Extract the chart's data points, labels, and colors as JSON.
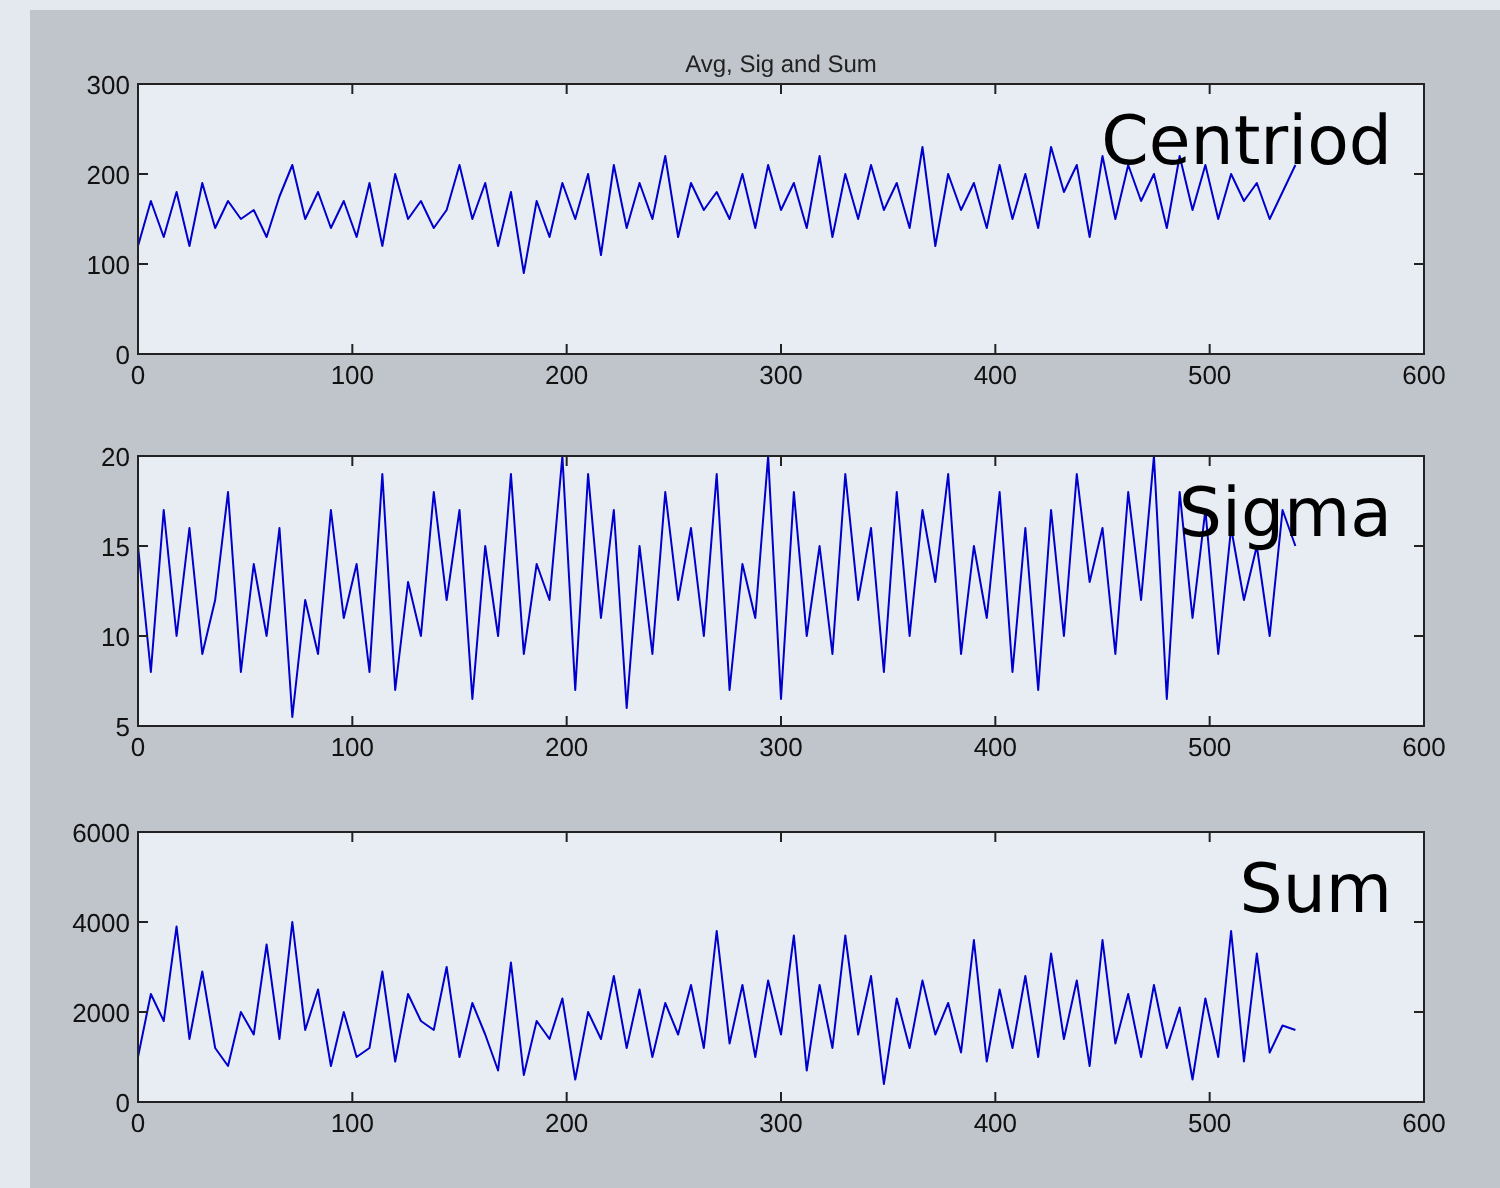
{
  "chart_data": [
    {
      "type": "line",
      "title": "Avg, Sig and Sum",
      "annotations": [
        "Centriod"
      ],
      "xlim": [
        0,
        600
      ],
      "xticks": [
        0,
        100,
        200,
        300,
        400,
        500,
        600
      ],
      "ylim": [
        0,
        300
      ],
      "yticks": [
        0,
        100,
        200,
        300
      ],
      "grid": false,
      "x": [
        0,
        6,
        12,
        18,
        24,
        30,
        36,
        42,
        48,
        54,
        60,
        66,
        72,
        78,
        84,
        90,
        96,
        102,
        108,
        114,
        120,
        126,
        132,
        138,
        144,
        150,
        156,
        162,
        168,
        174,
        180,
        186,
        192,
        198,
        204,
        210,
        216,
        222,
        228,
        234,
        240,
        246,
        252,
        258,
        264,
        270,
        276,
        282,
        288,
        294,
        300,
        306,
        312,
        318,
        324,
        330,
        336,
        342,
        348,
        354,
        360,
        366,
        372,
        378,
        384,
        390,
        396,
        402,
        408,
        414,
        420,
        426,
        432,
        438,
        444,
        450,
        456,
        462,
        468,
        474,
        480,
        486,
        492,
        498,
        504,
        510,
        516,
        522,
        528,
        534,
        540
      ],
      "series": [
        {
          "color": "#0000cc",
          "values": [
            120,
            170,
            130,
            180,
            120,
            190,
            140,
            170,
            150,
            160,
            130,
            175,
            210,
            150,
            180,
            140,
            170,
            130,
            190,
            120,
            200,
            150,
            170,
            140,
            160,
            210,
            150,
            190,
            120,
            180,
            90,
            170,
            130,
            190,
            150,
            200,
            110,
            210,
            140,
            190,
            150,
            220,
            130,
            190,
            160,
            180,
            150,
            200,
            140,
            210,
            160,
            190,
            140,
            220,
            130,
            200,
            150,
            210,
            160,
            190,
            140,
            230,
            120,
            200,
            160,
            190,
            140,
            210,
            150,
            200,
            140,
            230,
            180,
            210,
            130,
            220,
            150,
            210,
            170,
            200,
            140,
            220,
            160,
            210,
            150,
            200,
            170,
            190,
            150,
            180,
            210
          ]
        }
      ]
    },
    {
      "type": "line",
      "annotations": [
        "Sigma"
      ],
      "xlim": [
        0,
        600
      ],
      "xticks": [
        0,
        100,
        200,
        300,
        400,
        500,
        600
      ],
      "ylim": [
        5,
        20
      ],
      "yticks": [
        5,
        10,
        15,
        20
      ],
      "grid": false,
      "x": [
        0,
        6,
        12,
        18,
        24,
        30,
        36,
        42,
        48,
        54,
        60,
        66,
        72,
        78,
        84,
        90,
        96,
        102,
        108,
        114,
        120,
        126,
        132,
        138,
        144,
        150,
        156,
        162,
        168,
        174,
        180,
        186,
        192,
        198,
        204,
        210,
        216,
        222,
        228,
        234,
        240,
        246,
        252,
        258,
        264,
        270,
        276,
        282,
        288,
        294,
        300,
        306,
        312,
        318,
        324,
        330,
        336,
        342,
        348,
        354,
        360,
        366,
        372,
        378,
        384,
        390,
        396,
        402,
        408,
        414,
        420,
        426,
        432,
        438,
        444,
        450,
        456,
        462,
        468,
        474,
        480,
        486,
        492,
        498,
        504,
        510,
        516,
        522,
        528,
        534,
        540
      ],
      "series": [
        {
          "color": "#0000cc",
          "values": [
            15,
            8,
            17,
            10,
            16,
            9,
            12,
            18,
            8,
            14,
            10,
            16,
            5.5,
            12,
            9,
            17,
            11,
            14,
            8,
            19,
            7,
            13,
            10,
            18,
            12,
            17,
            6.5,
            15,
            10,
            19,
            9,
            14,
            12,
            20,
            7,
            19,
            11,
            17,
            6,
            15,
            9,
            18,
            12,
            16,
            10,
            19,
            7,
            14,
            11,
            20,
            6.5,
            18,
            10,
            15,
            9,
            19,
            12,
            16,
            8,
            18,
            10,
            17,
            13,
            19,
            9,
            15,
            11,
            18,
            8,
            16,
            7,
            17,
            10,
            19,
            13,
            16,
            9,
            18,
            12,
            20,
            6.5,
            18,
            11,
            17,
            9,
            16,
            12,
            15,
            10,
            17,
            15
          ]
        }
      ]
    },
    {
      "type": "line",
      "annotations": [
        "Sum"
      ],
      "xlim": [
        0,
        600
      ],
      "xticks": [
        0,
        100,
        200,
        300,
        400,
        500,
        600
      ],
      "ylim": [
        0,
        6000
      ],
      "yticks": [
        0,
        2000,
        4000,
        6000
      ],
      "grid": false,
      "x": [
        0,
        6,
        12,
        18,
        24,
        30,
        36,
        42,
        48,
        54,
        60,
        66,
        72,
        78,
        84,
        90,
        96,
        102,
        108,
        114,
        120,
        126,
        132,
        138,
        144,
        150,
        156,
        162,
        168,
        174,
        180,
        186,
        192,
        198,
        204,
        210,
        216,
        222,
        228,
        234,
        240,
        246,
        252,
        258,
        264,
        270,
        276,
        282,
        288,
        294,
        300,
        306,
        312,
        318,
        324,
        330,
        336,
        342,
        348,
        354,
        360,
        366,
        372,
        378,
        384,
        390,
        396,
        402,
        408,
        414,
        420,
        426,
        432,
        438,
        444,
        450,
        456,
        462,
        468,
        474,
        480,
        486,
        492,
        498,
        504,
        510,
        516,
        522,
        528,
        534,
        540
      ],
      "series": [
        {
          "color": "#0000cc",
          "values": [
            1000,
            2400,
            1800,
            3900,
            1400,
            2900,
            1200,
            800,
            2000,
            1500,
            3500,
            1400,
            4000,
            1600,
            2500,
            800,
            2000,
            1000,
            1200,
            2900,
            900,
            2400,
            1800,
            1600,
            3000,
            1000,
            2200,
            1500,
            700,
            3100,
            600,
            1800,
            1400,
            2300,
            500,
            2000,
            1400,
            2800,
            1200,
            2500,
            1000,
            2200,
            1500,
            2600,
            1200,
            3800,
            1300,
            2600,
            1000,
            2700,
            1500,
            3700,
            700,
            2600,
            1200,
            3700,
            1500,
            2800,
            400,
            2300,
            1200,
            2700,
            1500,
            2200,
            1100,
            3600,
            900,
            2500,
            1200,
            2800,
            1000,
            3300,
            1400,
            2700,
            800,
            3600,
            1300,
            2400,
            1000,
            2600,
            1200,
            2100,
            500,
            2300,
            1000,
            3800,
            900,
            3300,
            1100,
            1700,
            1600
          ]
        }
      ]
    }
  ]
}
